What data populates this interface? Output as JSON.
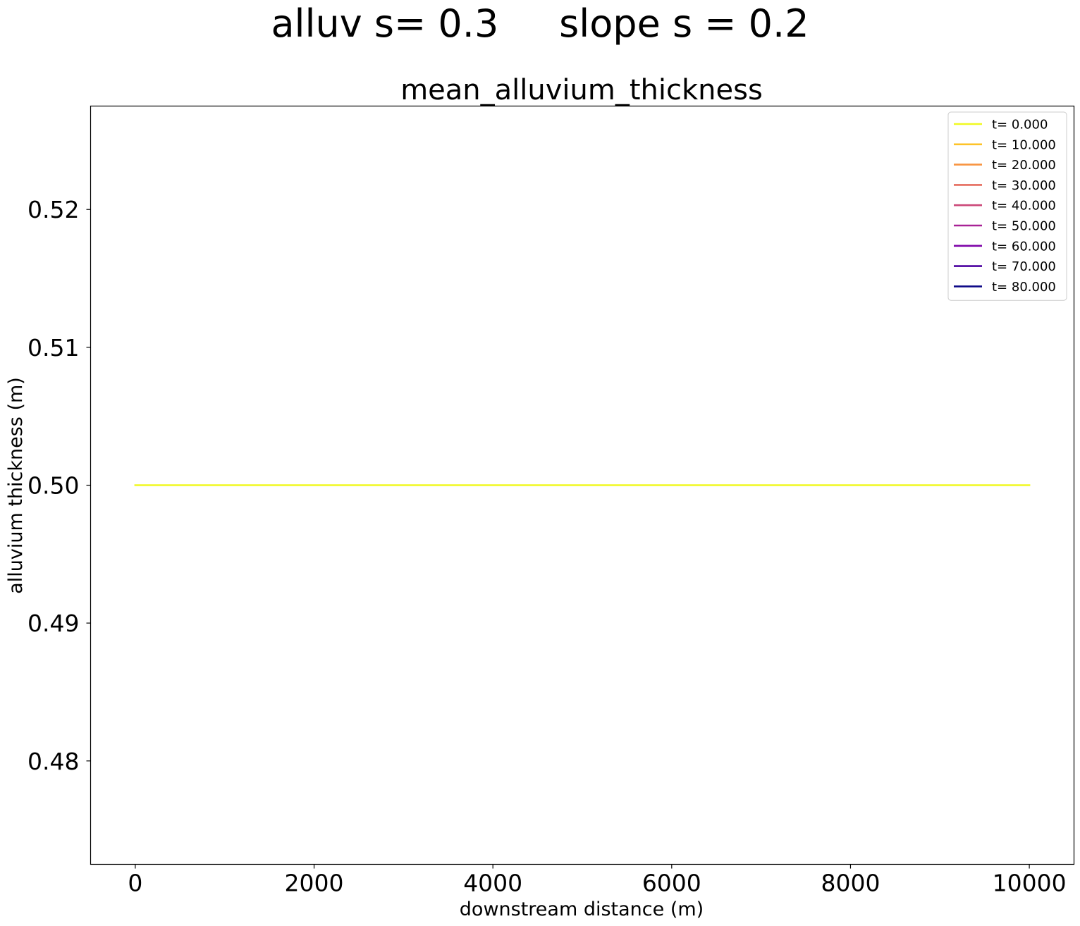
{
  "figure": {
    "suptitle": "alluv s= 0.3     slope s = 0.2"
  },
  "chart_data": {
    "type": "line",
    "title": "mean_alluvium_thickness",
    "xlabel": "downstream distance (m)",
    "ylabel": "alluvium thickness (m)",
    "xlim": [
      -500,
      10500
    ],
    "ylim": [
      0.4725,
      0.5275
    ],
    "xticks": [
      0,
      2000,
      4000,
      6000,
      8000,
      10000
    ],
    "xtick_labels": [
      "0",
      "2000",
      "4000",
      "6000",
      "8000",
      "10000"
    ],
    "yticks": [
      0.48,
      0.49,
      0.5,
      0.51,
      0.52
    ],
    "ytick_labels": [
      "0.48",
      "0.49",
      "0.50",
      "0.51",
      "0.52"
    ],
    "legend_position": "top-right",
    "grid": false,
    "x": [
      0,
      10000
    ],
    "series": [
      {
        "name": "t= 0.000",
        "color": "#f0f921",
        "values": [
          0.5,
          0.5
        ]
      },
      {
        "name": "t= 10.000",
        "color": "#fdc328",
        "values": [
          null,
          null
        ]
      },
      {
        "name": "t= 20.000",
        "color": "#f89441",
        "values": [
          null,
          null
        ]
      },
      {
        "name": "t= 30.000",
        "color": "#e56b5d",
        "values": [
          null,
          null
        ]
      },
      {
        "name": "t= 40.000",
        "color": "#cb4778",
        "values": [
          null,
          null
        ]
      },
      {
        "name": "t= 50.000",
        "color": "#a82296",
        "values": [
          null,
          null
        ]
      },
      {
        "name": "t= 60.000",
        "color": "#7e03a8",
        "values": [
          null,
          null
        ]
      },
      {
        "name": "t= 70.000",
        "color": "#4c02a1",
        "values": [
          null,
          null
        ]
      },
      {
        "name": "t= 80.000",
        "color": "#0d0887",
        "values": [
          null,
          null
        ]
      }
    ]
  }
}
